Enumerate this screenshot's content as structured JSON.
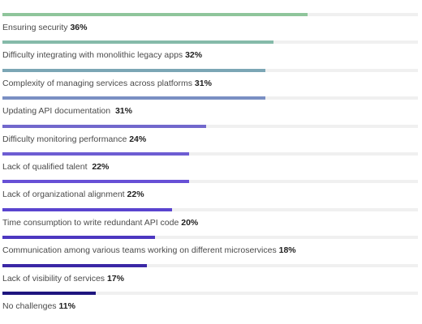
{
  "chart_data": {
    "type": "bar",
    "orientation": "horizontal",
    "xlim": [
      0,
      36
    ],
    "categories": [
      "Ensuring security",
      "Difficulty integrating with monolithic legacy apps",
      "Complexity of managing services across platforms",
      "Updating API documentation ",
      "Difficulty monitoring performance",
      "Lack of qualified talent ",
      "Lack of organizational alignment",
      "Time consumption to write redundant API code",
      "Communication among various teams working on different microservices",
      "Lack of visibility of services",
      "No challenges"
    ],
    "values": [
      36,
      32,
      31,
      31,
      24,
      22,
      22,
      20,
      18,
      17,
      11
    ],
    "value_labels": [
      "36%",
      "32%",
      "31%",
      "31%",
      "24%",
      "22%",
      "22%",
      "20%",
      "18%",
      "17%",
      "11%"
    ],
    "colors": [
      "#8fc59b",
      "#85baa9",
      "#7ba6b5",
      "#7a8fc3",
      "#7268cc",
      "#6d5dd3",
      "#6750d6",
      "#5a44cf",
      "#4c37c0",
      "#3b28a6",
      "#1e167f"
    ],
    "track_color": "#f0f0f0"
  }
}
